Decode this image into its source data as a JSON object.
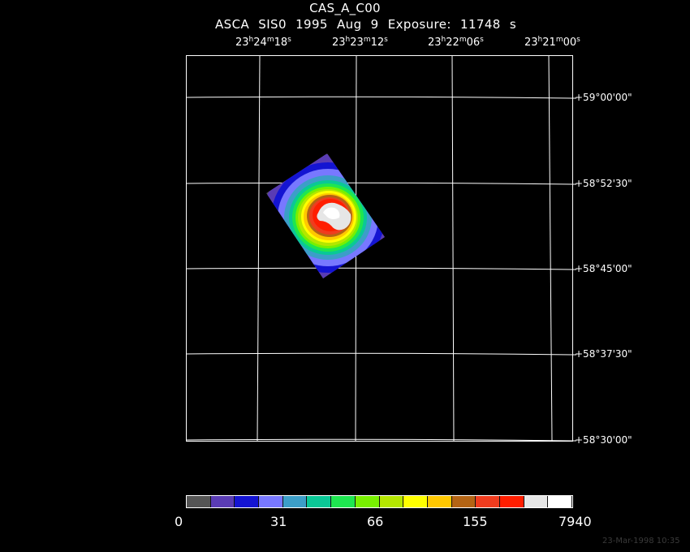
{
  "title": "CAS_A_C00",
  "subtitle": "ASCA SIS0   1995 Aug  9   Exposure: 11748 s",
  "ra_labels": [
    {
      "h": "23",
      "hm": "h",
      "m": "24",
      "mm": "m",
      "s": "18",
      "ss": "s"
    },
    {
      "h": "23",
      "hm": "h",
      "m": "23",
      "mm": "m",
      "s": "12",
      "ss": "s"
    },
    {
      "h": "23",
      "hm": "h",
      "m": "22",
      "mm": "m",
      "s": "06",
      "ss": "s"
    },
    {
      "h": "23",
      "hm": "h",
      "m": "21",
      "mm": "m",
      "s": "00",
      "ss": "s"
    }
  ],
  "dec_labels": [
    "+59°00'00\"",
    "+58°52'30\"",
    "+58°45'00\"",
    "+58°37'30\"",
    "+58°30'00\""
  ],
  "colorbar": {
    "colors": [
      "#555555",
      "#5a3cb4",
      "#1414d2",
      "#7878ff",
      "#3c9ec8",
      "#0ac896",
      "#1ee650",
      "#78f000",
      "#b4e600",
      "#ffff00",
      "#ffc800",
      "#b46414",
      "#f03c1e",
      "#ff1e00",
      "#e6e6e6",
      "#ffffff"
    ],
    "labels": [
      "0",
      "31",
      "66",
      "155",
      "7940"
    ]
  },
  "timestamp": "23-Mar-1998 10:35"
}
